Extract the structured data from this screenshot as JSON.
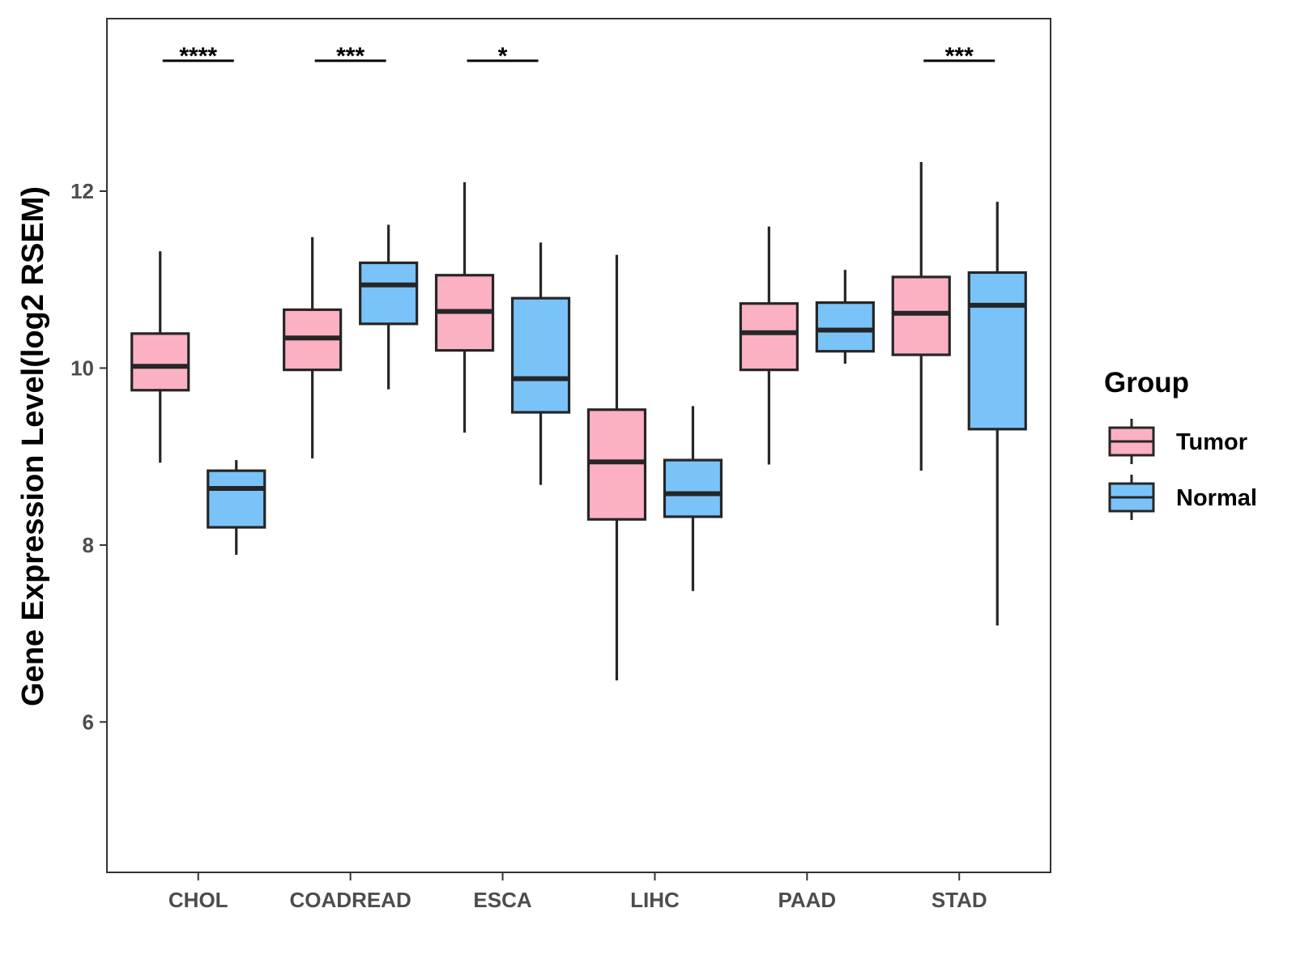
{
  "chart_data": {
    "type": "boxplot",
    "title": "",
    "xlabel": "",
    "ylabel": "Gene Expression Level(log2 RSEM)",
    "ylim": [
      4.3,
      13.95
    ],
    "yticks": [
      6,
      8,
      10,
      12
    ],
    "categories": [
      "CHOL",
      "COADREAD",
      "ESCA",
      "LIHC",
      "PAAD",
      "STAD"
    ],
    "legend": {
      "title": "Group",
      "position": "right"
    },
    "series": [
      {
        "name": "Tumor",
        "color": "#FBB1C2",
        "boxes": [
          {
            "category": "CHOL",
            "min": 8.93,
            "q1": 9.75,
            "median": 10.02,
            "q3": 10.39,
            "max": 11.32
          },
          {
            "category": "COADREAD",
            "min": 8.98,
            "q1": 9.98,
            "median": 10.34,
            "q3": 10.66,
            "max": 11.48
          },
          {
            "category": "ESCA",
            "min": 9.27,
            "q1": 10.2,
            "median": 10.64,
            "q3": 11.05,
            "max": 12.1
          },
          {
            "category": "LIHC",
            "min": 6.47,
            "q1": 8.29,
            "median": 8.94,
            "q3": 9.53,
            "max": 11.28
          },
          {
            "category": "PAAD",
            "min": 8.91,
            "q1": 9.98,
            "median": 10.4,
            "q3": 10.73,
            "max": 11.6
          },
          {
            "category": "STAD",
            "min": 8.84,
            "q1": 10.15,
            "median": 10.62,
            "q3": 11.03,
            "max": 12.33
          }
        ]
      },
      {
        "name": "Normal",
        "color": "#7AC3F8",
        "boxes": [
          {
            "category": "CHOL",
            "min": 7.89,
            "q1": 8.2,
            "median": 8.64,
            "q3": 8.84,
            "max": 8.96
          },
          {
            "category": "COADREAD",
            "min": 9.76,
            "q1": 10.5,
            "median": 10.94,
            "q3": 11.19,
            "max": 11.62
          },
          {
            "category": "ESCA",
            "min": 8.68,
            "q1": 9.5,
            "median": 9.88,
            "q3": 10.79,
            "max": 11.42
          },
          {
            "category": "LIHC",
            "min": 7.48,
            "q1": 8.32,
            "median": 8.58,
            "q3": 8.96,
            "max": 9.57
          },
          {
            "category": "PAAD",
            "min": 10.05,
            "q1": 10.19,
            "median": 10.43,
            "q3": 10.74,
            "max": 11.11
          },
          {
            "category": "STAD",
            "min": 7.09,
            "q1": 9.31,
            "median": 10.71,
            "q3": 11.08,
            "max": 11.88
          }
        ]
      }
    ],
    "significance": [
      {
        "category": "CHOL",
        "label": "****"
      },
      {
        "category": "COADREAD",
        "label": "***"
      },
      {
        "category": "ESCA",
        "label": "*"
      },
      {
        "category": "STAD",
        "label": "***"
      }
    ],
    "colors": {
      "line": "#262626",
      "axis": "#333333",
      "ticklabel": "#4d4d4d"
    }
  }
}
